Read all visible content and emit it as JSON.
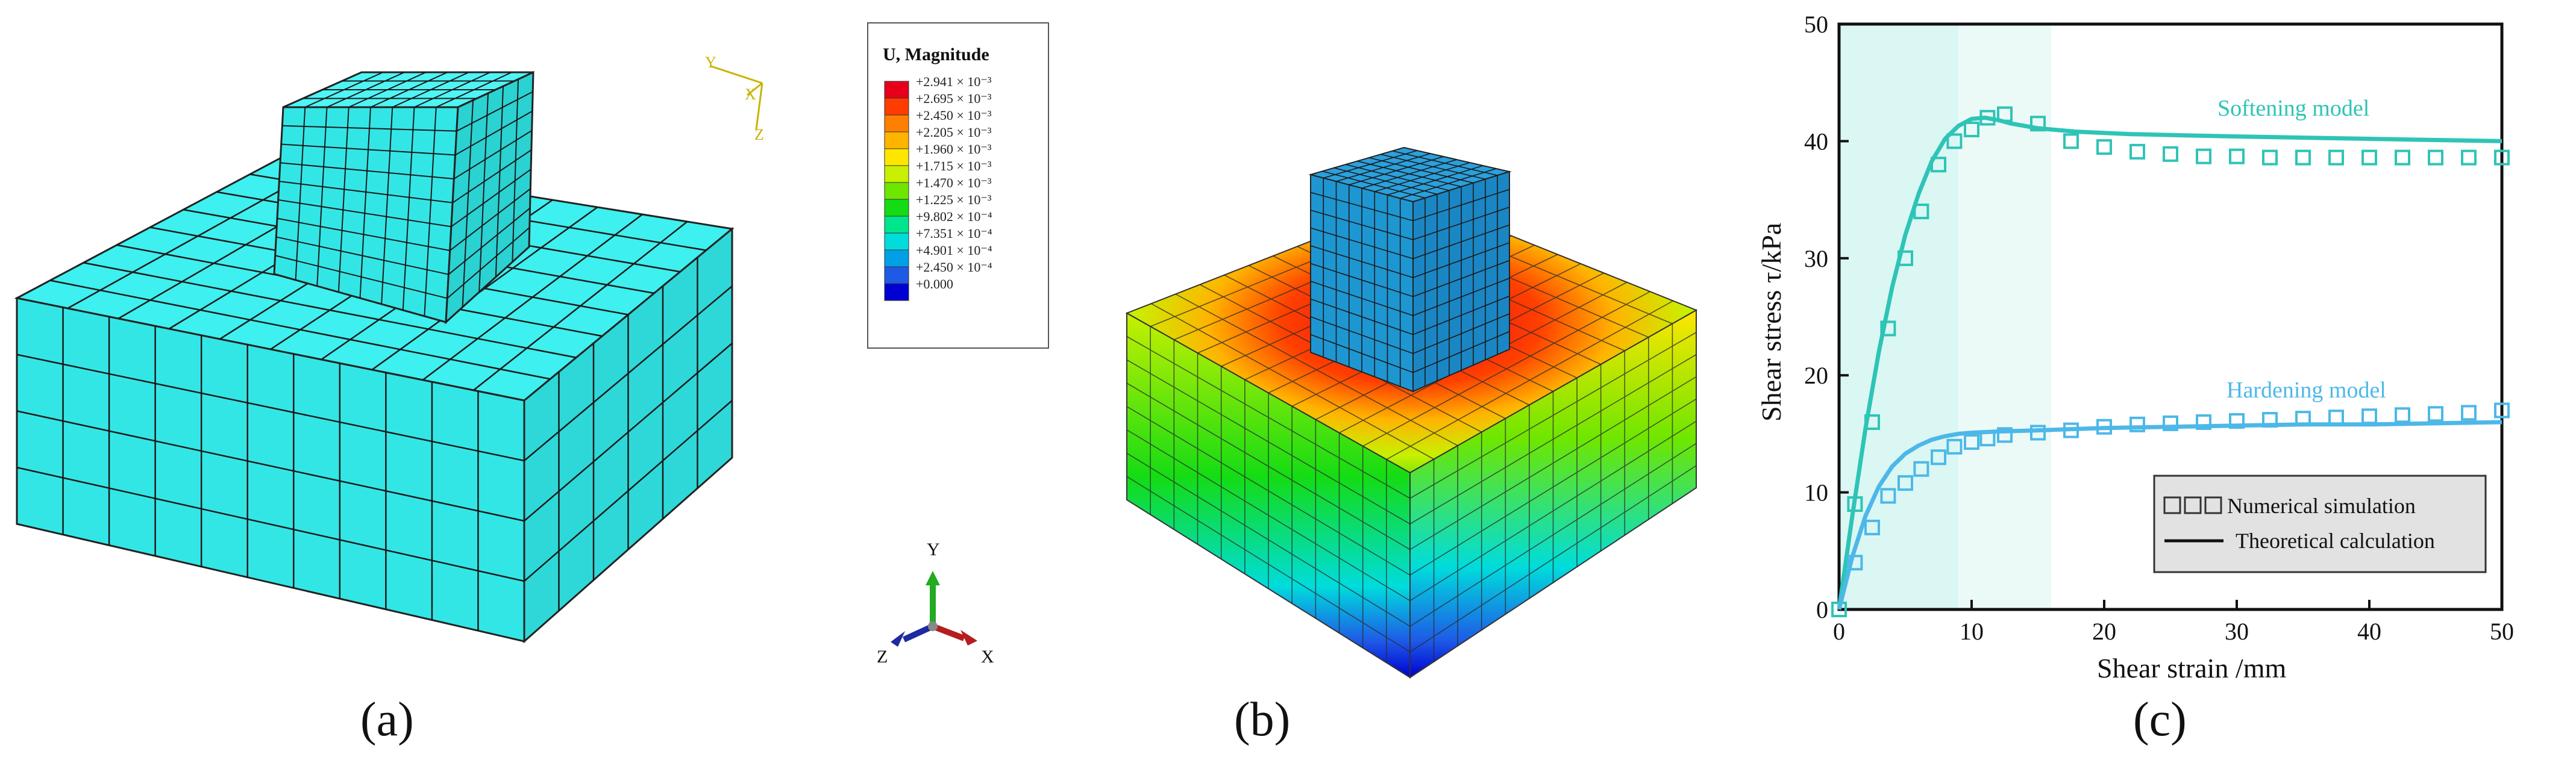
{
  "panels": {
    "a": {
      "label": "(a)",
      "axes_glyph": {
        "y": "Y",
        "x": "X",
        "z": "Z"
      }
    },
    "b": {
      "label": "(b)"
    },
    "c": {
      "label": "(c)"
    }
  },
  "legend_contour": {
    "title": "U, Magnitude",
    "levels": [
      "+2.941 × 10⁻³",
      "+2.695 × 10⁻³",
      "+2.450 × 10⁻³",
      "+2.205 × 10⁻³",
      "+1.960 × 10⁻³",
      "+1.715 × 10⁻³",
      "+1.470 × 10⁻³",
      "+1.225 × 10⁻³",
      "+9.802 × 10⁻⁴",
      "+7.351 × 10⁻⁴",
      "+4.901 × 10⁻⁴",
      "+2.450 × 10⁻⁴",
      "+0.000"
    ],
    "colors": [
      "#e8001a",
      "#ff3c00",
      "#ff8000",
      "#ffb400",
      "#ffe600",
      "#c8f000",
      "#6ee600",
      "#14dc14",
      "#00e68c",
      "#00dcdc",
      "#00a0e6",
      "#1e5ae6",
      "#0000d2"
    ]
  },
  "triad": {
    "y": "Y",
    "x": "X",
    "z": "Z"
  },
  "colors": {
    "mesh_cyan": "#33e8e8",
    "mesh_blue": "#1a9ad6",
    "soft": "#2ec4b6",
    "hard": "#4db8e8"
  },
  "chart_data": {
    "type": "line",
    "xlabel": "Shear strain /mm",
    "ylabel": "Shear stress τ/kPa",
    "xlim": [
      0,
      50
    ],
    "ylim": [
      0,
      50
    ],
    "xticks": [
      0,
      10,
      20,
      30,
      40,
      50
    ],
    "yticks": [
      0,
      10,
      20,
      30,
      40,
      50
    ],
    "legend_position": "bottom-right",
    "legend": {
      "markers": "Numerical simulation",
      "line": "Theoretical calculation"
    },
    "shaded_regions": [
      [
        0,
        9
      ],
      [
        9,
        16
      ]
    ],
    "series": [
      {
        "name": "Softening model",
        "line": {
          "x": [
            0,
            1,
            2,
            3,
            4,
            5,
            6,
            7,
            8,
            9,
            10,
            11,
            12,
            13,
            15,
            18,
            22,
            26,
            30,
            35,
            40,
            45,
            50
          ],
          "y": [
            0,
            8,
            15.5,
            22,
            27.5,
            32,
            35.5,
            38.3,
            40.2,
            41.3,
            41.9,
            42.0,
            41.8,
            41.5,
            41.1,
            40.8,
            40.6,
            40.5,
            40.4,
            40.3,
            40.2,
            40.1,
            40.0
          ]
        },
        "points": {
          "x": [
            0,
            1.2,
            2.5,
            3.7,
            5,
            6.2,
            7.5,
            8.7,
            10,
            11.2,
            12.5,
            15,
            17.5,
            20,
            22.5,
            25,
            27.5,
            30,
            32.5,
            35,
            37.5,
            40,
            42.5,
            45,
            47.5,
            50
          ],
          "y": [
            0,
            9,
            16,
            24,
            30,
            34,
            38,
            40,
            41,
            42,
            42.3,
            41.5,
            40,
            39.5,
            39.1,
            38.9,
            38.7,
            38.7,
            38.6,
            38.6,
            38.6,
            38.6,
            38.6,
            38.6,
            38.6,
            38.6
          ]
        }
      },
      {
        "name": "Hardening model",
        "line": {
          "x": [
            0,
            1,
            2,
            3,
            4,
            5,
            6,
            7,
            8,
            9,
            10,
            12,
            15,
            20,
            25,
            30,
            35,
            40,
            45,
            50
          ],
          "y": [
            0,
            4.5,
            8,
            10.5,
            12.2,
            13.3,
            14.0,
            14.5,
            14.8,
            15.0,
            15.1,
            15.2,
            15.3,
            15.5,
            15.6,
            15.7,
            15.8,
            15.8,
            15.9,
            16.0
          ]
        },
        "points": {
          "x": [
            1.2,
            2.5,
            3.7,
            5,
            6.2,
            7.5,
            8.7,
            10,
            11.2,
            12.5,
            15,
            17.5,
            20,
            22.5,
            25,
            27.5,
            30,
            32.5,
            35,
            37.5,
            40,
            42.5,
            45,
            47.5,
            50
          ],
          "y": [
            4,
            7,
            9.7,
            10.8,
            12,
            13,
            13.9,
            14.3,
            14.6,
            14.9,
            15.1,
            15.3,
            15.6,
            15.8,
            15.9,
            16.0,
            16.1,
            16.2,
            16.3,
            16.4,
            16.5,
            16.6,
            16.7,
            16.8,
            17.0
          ]
        }
      }
    ]
  }
}
